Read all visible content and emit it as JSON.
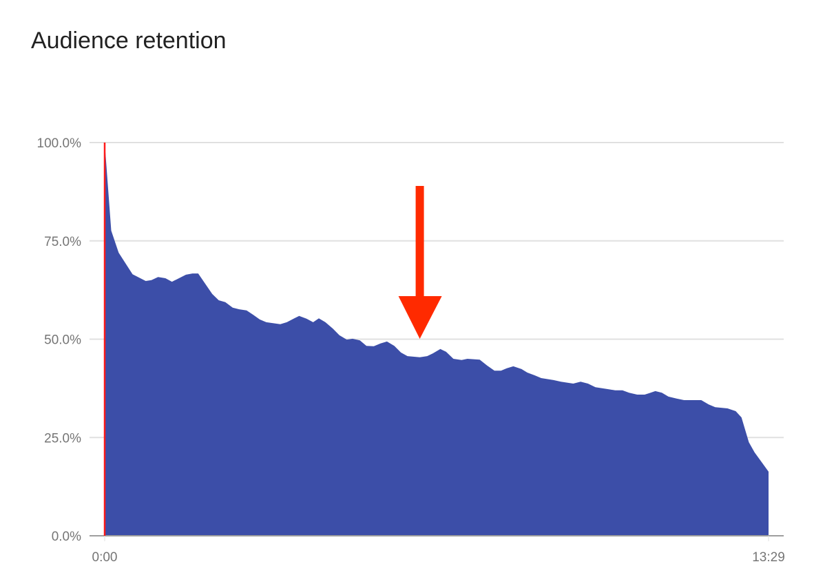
{
  "chart_data": {
    "type": "area",
    "title": "Audience retention",
    "xlabel": "",
    "ylabel": "",
    "x_ticks": [
      "0:00",
      "13:29"
    ],
    "y_ticks": [
      "0.0%",
      "25.0%",
      "50.0%",
      "75.0%",
      "100.0%"
    ],
    "xlim": [
      "0:00",
      "13:29"
    ],
    "ylim": [
      0,
      100
    ],
    "grid": "horizontal",
    "colors": {
      "fill": "#3c4ea8",
      "cursor": "#ff1a1a",
      "arrow": "#ff2a00",
      "grid": "#e0e0e0",
      "axis": "#9e9e9e"
    },
    "annotation": {
      "type": "arrow",
      "direction": "down",
      "points_to_time": "6:24"
    },
    "series": [
      {
        "x": [
          "0:00",
          "0:08",
          "0:17",
          "0:34",
          "0:50",
          "0:57",
          "1:05",
          "1:14",
          "1:22",
          "1:39",
          "1:47",
          "1:54",
          "2:11",
          "2:19",
          "2:27",
          "2:36",
          "2:44",
          "2:53",
          "3:01",
          "3:09",
          "3:17",
          "3:34",
          "3:42",
          "3:51",
          "3:57",
          "4:06",
          "4:14",
          "4:21",
          "4:29",
          "4:38",
          "4:46",
          "4:55",
          "5:02",
          "5:11",
          "5:19",
          "5:28",
          "5:36",
          "5:44",
          "5:53",
          "6:01",
          "6:09",
          "6:24",
          "6:33",
          "6:40",
          "6:49",
          "6:56",
          "7:05",
          "7:15",
          "7:22",
          "7:37",
          "7:46",
          "7:55",
          "8:03",
          "8:10",
          "8:18",
          "8:28",
          "8:35",
          "8:44",
          "8:52",
          "9:07",
          "9:16",
          "9:31",
          "9:40",
          "9:49",
          "9:58",
          "10:13",
          "10:22",
          "10:31",
          "10:39",
          "10:49",
          "10:58",
          "11:04",
          "11:11",
          "11:19",
          "11:27",
          "11:37",
          "11:46",
          "11:55",
          "12:07",
          "12:16",
          "12:24",
          "12:39",
          "12:49",
          "12:56",
          "13:05",
          "13:12",
          "13:21",
          "13:29"
        ],
        "values": [
          100,
          77.6,
          72.0,
          66.5,
          64.8,
          65.0,
          65.8,
          65.5,
          64.6,
          66.4,
          66.7,
          66.7,
          61.5,
          59.9,
          59.4,
          58.0,
          57.6,
          57.3,
          56.2,
          55.0,
          54.3,
          53.8,
          54.3,
          55.3,
          55.9,
          55.2,
          54.3,
          55.3,
          54.3,
          52.7,
          51.0,
          49.9,
          50.1,
          49.7,
          48.3,
          48.2,
          48.9,
          49.4,
          48.3,
          46.6,
          45.7,
          45.4,
          45.7,
          46.4,
          47.5,
          46.8,
          45.0,
          44.7,
          45.0,
          44.8,
          43.3,
          42.0,
          42.0,
          42.6,
          43.1,
          42.4,
          41.5,
          40.8,
          40.1,
          39.6,
          39.2,
          38.7,
          39.2,
          38.7,
          37.8,
          37.3,
          37.0,
          37.0,
          36.4,
          35.9,
          35.9,
          36.3,
          36.8,
          36.4,
          35.4,
          34.9,
          34.5,
          34.5,
          34.5,
          33.4,
          32.7,
          32.4,
          31.7,
          30.1,
          23.8,
          21.2,
          18.6,
          16.3
        ]
      }
    ]
  }
}
